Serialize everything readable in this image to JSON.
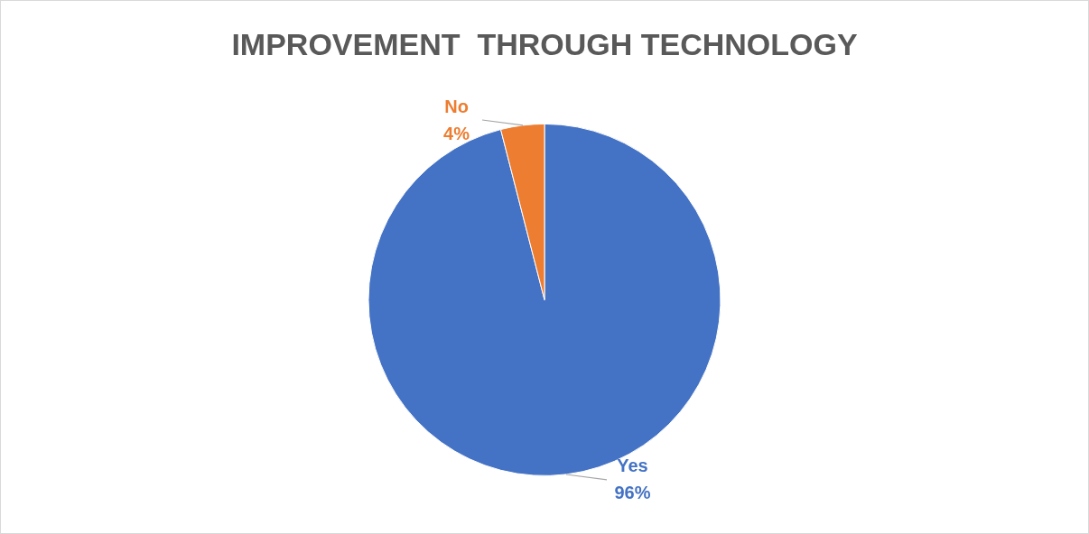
{
  "chart_data": {
    "type": "pie",
    "title": "IMPROVEMENT  THROUGH TECHNOLOGY",
    "categories": [
      "Yes",
      "No"
    ],
    "values": [
      96,
      4
    ],
    "colors": [
      "#4472c4",
      "#ed7d31"
    ],
    "value_labels": [
      "96%",
      "4%"
    ],
    "legend": false
  }
}
